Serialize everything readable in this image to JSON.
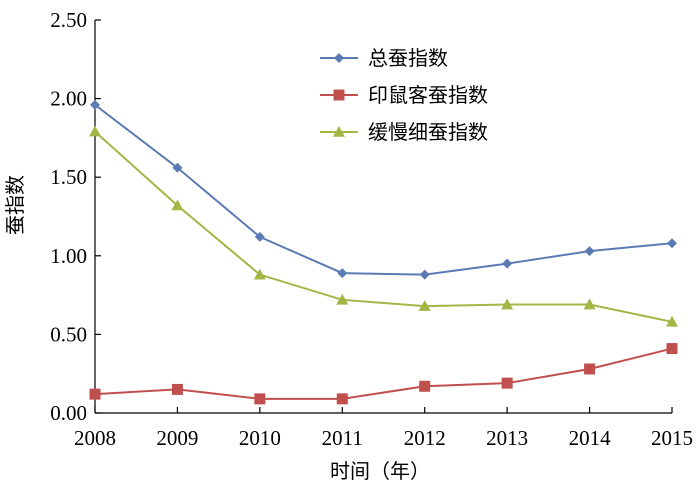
{
  "chart_data": {
    "type": "line",
    "xlabel": "时间（年）",
    "ylabel": "蚕指数",
    "ylim": [
      0,
      2.5
    ],
    "yticks": [
      "0.00",
      "0.50",
      "1.00",
      "1.50",
      "2.00",
      "2.50"
    ],
    "x": [
      "2008",
      "2009",
      "2010",
      "2011",
      "2012",
      "2013",
      "2014",
      "2015"
    ],
    "grid": false,
    "legend_position": "top-right",
    "series": [
      {
        "name": "总蚕指数",
        "color": "#5b7bb4",
        "marker": "diamond",
        "values": [
          1.96,
          1.56,
          1.12,
          0.89,
          0.88,
          0.95,
          1.03,
          1.08
        ]
      },
      {
        "name": "印鼠客蚕指数",
        "color": "#c0504d",
        "marker": "square",
        "values": [
          0.12,
          0.15,
          0.09,
          0.09,
          0.17,
          0.19,
          0.28,
          0.41
        ]
      },
      {
        "name": "缓慢细蚕指数",
        "color": "#a3b545",
        "marker": "triangle",
        "values": [
          1.79,
          1.32,
          0.88,
          0.72,
          0.68,
          0.69,
          0.69,
          0.58
        ]
      }
    ]
  }
}
